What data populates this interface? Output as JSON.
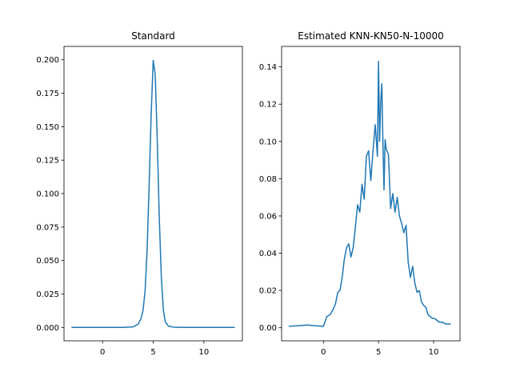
{
  "chart_data": [
    {
      "type": "line",
      "title": "Standard",
      "xlabel": "",
      "ylabel": "",
      "xlim": [
        -3.8,
        13.8
      ],
      "ylim": [
        -0.01,
        0.21
      ],
      "xticks": [
        0,
        5,
        10
      ],
      "yticks": [
        0.0,
        0.025,
        0.05,
        0.075,
        0.1,
        0.125,
        0.15,
        0.175,
        0.2
      ],
      "ytick_labels": [
        "0.000",
        "0.025",
        "0.050",
        "0.075",
        "0.100",
        "0.125",
        "0.150",
        "0.175",
        "0.200"
      ],
      "xtick_labels": [
        "0",
        "5",
        "10"
      ],
      "grid": false,
      "series": [
        {
          "color": "#1f77b4",
          "x": [
            -3,
            -1,
            1,
            2,
            3,
            3.5,
            3.8,
            4.0,
            4.2,
            4.4,
            4.6,
            4.8,
            5.0,
            5.2,
            5.4,
            5.6,
            5.8,
            6.0,
            6.2,
            6.5,
            7.0,
            8,
            10,
            13
          ],
          "y": [
            0,
            0,
            0,
            0.0,
            0.0004,
            0.0023,
            0.0066,
            0.013,
            0.0272,
            0.0576,
            0.1066,
            0.159,
            0.1995,
            0.189,
            0.14,
            0.082,
            0.038,
            0.013,
            0.004,
            0.001,
            0.0002,
            0,
            0,
            0
          ]
        }
      ]
    },
    {
      "type": "line",
      "title": "Estimated KNN-KN50-N-10000",
      "xlabel": "",
      "ylabel": "",
      "xlim": [
        -3.8,
        12.4
      ],
      "ylim": [
        -0.007,
        0.151
      ],
      "xticks": [
        0,
        5,
        10
      ],
      "yticks": [
        0.0,
        0.02,
        0.04,
        0.06,
        0.08,
        0.1,
        0.12,
        0.14
      ],
      "ytick_labels": [
        "0.00",
        "0.02",
        "0.04",
        "0.06",
        "0.08",
        "0.10",
        "0.12",
        "0.14"
      ],
      "xtick_labels": [
        "0",
        "5",
        "10"
      ],
      "grid": false,
      "series": [
        {
          "color": "#1f77b4",
          "x": [
            -3.1,
            -2.0,
            -1.5,
            -1.0,
            0.0,
            0.3,
            0.6,
            0.9,
            1.1,
            1.3,
            1.5,
            1.7,
            1.9,
            2.1,
            2.3,
            2.5,
            2.7,
            2.9,
            3.1,
            3.3,
            3.5,
            3.7,
            3.9,
            4.1,
            4.3,
            4.5,
            4.7,
            4.9,
            5.0,
            5.1,
            5.2,
            5.3,
            5.4,
            5.5,
            5.6,
            5.7,
            5.9,
            6.1,
            6.3,
            6.5,
            6.7,
            6.9,
            7.1,
            7.3,
            7.5,
            7.7,
            7.9,
            8.1,
            8.3,
            8.5,
            8.7,
            8.9,
            9.1,
            9.3,
            9.5,
            9.7,
            9.9,
            10.1,
            10.3,
            10.5,
            10.8,
            11.1,
            11.5
          ],
          "y": [
            0.0008,
            0.0012,
            0.0015,
            0.0012,
            0.0008,
            0.006,
            0.007,
            0.01,
            0.013,
            0.019,
            0.02,
            0.027,
            0.037,
            0.043,
            0.045,
            0.038,
            0.043,
            0.054,
            0.066,
            0.062,
            0.077,
            0.069,
            0.092,
            0.095,
            0.079,
            0.095,
            0.109,
            0.092,
            0.143,
            0.1,
            0.121,
            0.131,
            0.1,
            0.074,
            0.101,
            0.096,
            0.093,
            0.064,
            0.072,
            0.062,
            0.07,
            0.06,
            0.056,
            0.051,
            0.055,
            0.035,
            0.027,
            0.033,
            0.024,
            0.019,
            0.02,
            0.014,
            0.012,
            0.011,
            0.007,
            0.006,
            0.005,
            0.005,
            0.004,
            0.003,
            0.003,
            0.002,
            0.002
          ]
        }
      ]
    }
  ]
}
